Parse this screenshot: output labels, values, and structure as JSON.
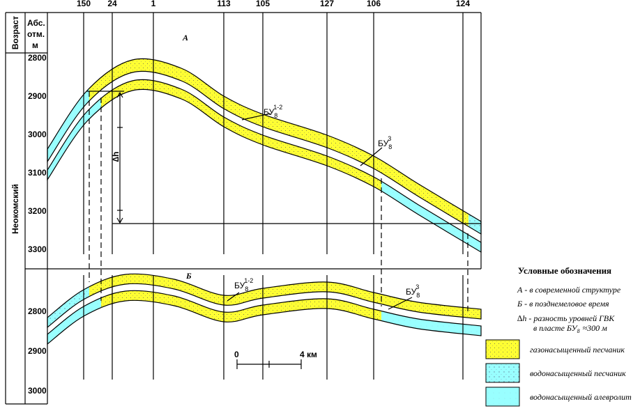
{
  "wells": [
    "150",
    "24",
    "1",
    "113",
    "105",
    "127",
    "106",
    "124"
  ],
  "header": {
    "age": "Возраст",
    "depth": [
      "Абс.",
      "отм.",
      "м"
    ],
    "stage": "Неокомский"
  },
  "sections": [
    {
      "label": "А",
      "depth_ticks": [
        "2800",
        "2900",
        "3000",
        "3100",
        "3200",
        "3300"
      ],
      "layers": [
        {
          "base": "БУ",
          "sub": "8",
          "sup": "1-2"
        },
        {
          "base": "БУ",
          "sub": "8",
          "sup": "3"
        }
      ]
    },
    {
      "label": "Б",
      "depth_ticks": [
        "2800",
        "2900",
        "3000"
      ],
      "layers": [
        {
          "base": "БУ",
          "sub": "8",
          "sup": "1-2"
        },
        {
          "base": "БУ",
          "sub": "8",
          "sup": "3"
        }
      ]
    }
  ],
  "delta_label": "∆h",
  "scale": [
    "0",
    "4 км"
  ],
  "legend": {
    "title": "Условные обозначения",
    "notes": [
      "А - в современной структуре",
      "Б - в позднемеловое время",
      "∆h - разность уровней ГВК"
    ],
    "note_last": {
      "text": "в пласте БУ",
      "sub": "8",
      "value": "≈300 м"
    },
    "items": [
      "газонасыщенный песчаник",
      "водонасыщенный песчаник",
      "водонасыщенный алевролит"
    ]
  }
}
